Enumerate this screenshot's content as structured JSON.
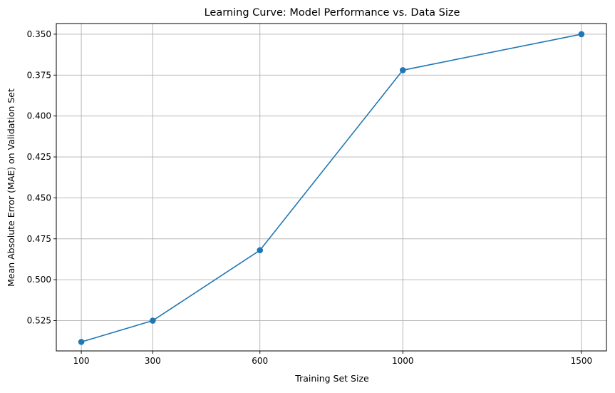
{
  "chart_data": {
    "type": "line",
    "title": "Learning Curve: Model Performance vs. Data Size",
    "xlabel": "Training Set Size",
    "ylabel": "Mean Absolute Error (MAE) on Validation Set",
    "x": [
      100,
      300,
      600,
      1000,
      1500
    ],
    "x_ticks": [
      "100",
      "300",
      "600",
      "1000",
      "1500"
    ],
    "y_ticks": [
      "0.350",
      "0.375",
      "0.400",
      "0.425",
      "0.450",
      "0.475",
      "0.500",
      "0.525"
    ],
    "y_tick_values": [
      0.35,
      0.375,
      0.4,
      0.425,
      0.45,
      0.475,
      0.5,
      0.525
    ],
    "series": [
      {
        "values": [
          0.538,
          0.525,
          0.482,
          0.372,
          0.35
        ]
      }
    ],
    "xlim": [
      30,
      1570
    ],
    "ylim": [
      0.5435,
      0.3435
    ],
    "y_axis_inverted": true,
    "grid": true,
    "marker": "circle",
    "line_color": "#1f77b4",
    "grid_color": "#b0b0b0"
  }
}
